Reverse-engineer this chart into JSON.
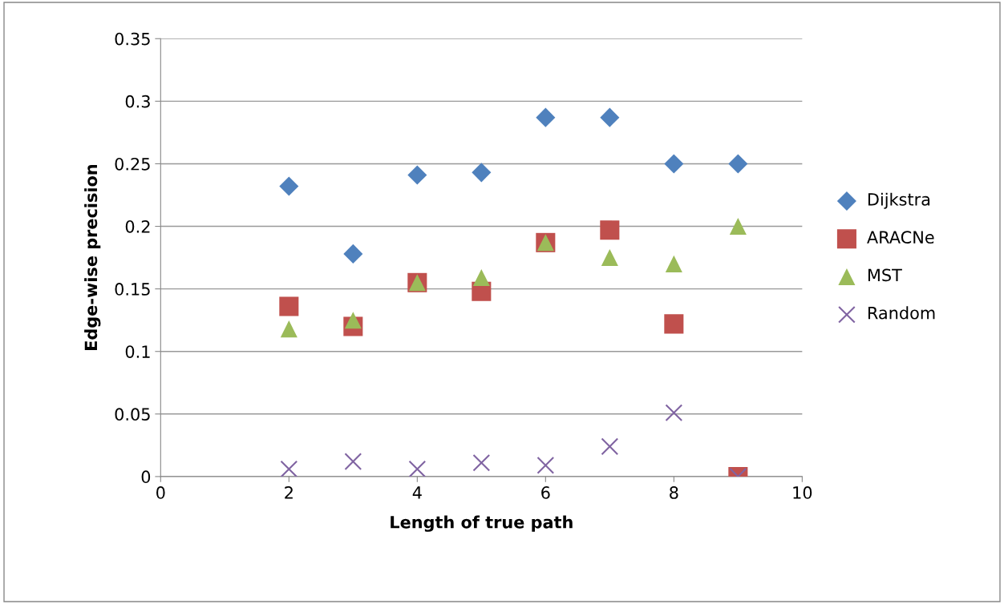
{
  "chart_data": {
    "type": "scatter",
    "xlabel": "Length of true path",
    "ylabel": "Edge-wise precision",
    "xlim": [
      0,
      10
    ],
    "xticks": [
      0,
      2,
      4,
      6,
      8,
      10
    ],
    "ylim": [
      0,
      0.35
    ],
    "yticks": [
      0,
      0.05,
      0.1,
      0.15,
      0.2,
      0.25,
      0.3,
      0.35
    ],
    "grid": "y",
    "legend": "right",
    "x": [
      2,
      3,
      4,
      5,
      6,
      7,
      8,
      9
    ],
    "series": [
      {
        "name": "Dijkstra",
        "color": "#4f81bd",
        "marker": "diamond",
        "values": [
          0.232,
          0.178,
          0.241,
          0.243,
          0.287,
          0.287,
          0.25,
          0.25
        ]
      },
      {
        "name": "ARACNe",
        "color": "#c0504d",
        "marker": "square",
        "values": [
          0.136,
          0.12,
          0.155,
          0.148,
          0.187,
          0.197,
          0.122,
          0
        ]
      },
      {
        "name": "MST",
        "color": "#9bbb59",
        "marker": "triangle",
        "values": [
          0.118,
          0.125,
          0.155,
          0.159,
          0.187,
          0.175,
          0.17,
          0.2
        ]
      },
      {
        "name": "Random",
        "color": "#8064a2",
        "marker": "cross",
        "values": [
          0.006,
          0.012,
          0.006,
          0.011,
          0.009,
          0.024,
          0.051,
          0
        ]
      }
    ]
  }
}
